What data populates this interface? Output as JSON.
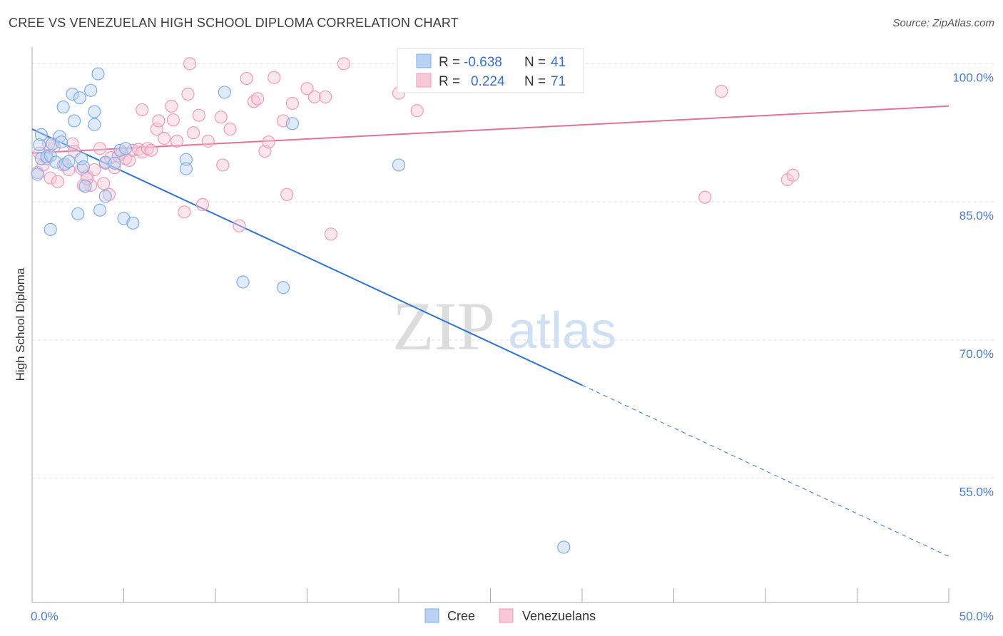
{
  "header": {
    "title": "CREE VS VENEZUELAN HIGH SCHOOL DIPLOMA CORRELATION CHART",
    "source": "Source: ZipAtlas.com"
  },
  "legend_box": {
    "rows": [
      {
        "r_label": "R =",
        "r_value": "-0.638",
        "n_label": "N =",
        "n_value": "41"
      },
      {
        "r_label": "R =",
        "r_value": "0.224",
        "n_label": "N =",
        "n_value": "71"
      }
    ]
  },
  "watermark": {
    "zip": "ZIP",
    "atlas": "atlas"
  },
  "bottom_legend": {
    "cree": "Cree",
    "venezuelans": "Venezuelans"
  },
  "colors": {
    "cree": "#7eaee8",
    "cree_fill": "#b9d2f3",
    "cree_line": "#2e74d3",
    "ven": "#f19ab6",
    "ven_fill": "#f8c8d7",
    "ven_line": "#e5709a",
    "grid": "#dddddd",
    "axis_text": "#4a7bd0"
  },
  "chart_data": {
    "type": "scatter",
    "title": "CREE VS VENEZUELAN HIGH SCHOOL DIPLOMA CORRELATION CHART",
    "xlabel": "",
    "ylabel": "High School Diploma",
    "xlim": [
      0,
      50
    ],
    "ylim": [
      41.5,
      101.5
    ],
    "x_tick_labels": [
      "0.0%",
      "50.0%"
    ],
    "y_ticks": [
      {
        "value": 100,
        "label": "100.0%"
      },
      {
        "value": 85,
        "label": "85.0%"
      },
      {
        "value": 70,
        "label": "70.0%"
      },
      {
        "value": 55,
        "label": "55.0%"
      }
    ],
    "series": [
      {
        "name": "Cree",
        "R": -0.638,
        "N": 41,
        "trend": {
          "x0": 0,
          "y0": 92.9,
          "x1": 30,
          "y1": 65.1,
          "dash_to_x": 50,
          "dash_to_y": 46.5
        },
        "points": [
          [
            0.3,
            88.0
          ],
          [
            0.4,
            91.2
          ],
          [
            0.5,
            89.7
          ],
          [
            0.8,
            89.9
          ],
          [
            1.0,
            90.0
          ],
          [
            1.1,
            91.3
          ],
          [
            1.3,
            89.3
          ],
          [
            1.5,
            92.1
          ],
          [
            1.6,
            91.5
          ],
          [
            1.7,
            95.3
          ],
          [
            1.8,
            89.1
          ],
          [
            2.0,
            89.4
          ],
          [
            2.2,
            96.7
          ],
          [
            2.3,
            93.8
          ],
          [
            2.5,
            83.7
          ],
          [
            2.6,
            96.3
          ],
          [
            2.7,
            89.7
          ],
          [
            2.8,
            88.8
          ],
          [
            2.9,
            86.7
          ],
          [
            3.2,
            97.1
          ],
          [
            3.4,
            94.8
          ],
          [
            3.4,
            93.4
          ],
          [
            3.6,
            98.9
          ],
          [
            3.7,
            84.1
          ],
          [
            4.0,
            85.6
          ],
          [
            4.0,
            89.3
          ],
          [
            4.5,
            89.2
          ],
          [
            4.8,
            90.6
          ],
          [
            5.0,
            83.2
          ],
          [
            5.1,
            90.8
          ],
          [
            5.5,
            82.7
          ],
          [
            8.4,
            89.6
          ],
          [
            8.4,
            88.6
          ],
          [
            10.5,
            96.9
          ],
          [
            11.5,
            76.3
          ],
          [
            13.7,
            75.7
          ],
          [
            14.2,
            93.5
          ],
          [
            20.0,
            89.0
          ],
          [
            1.0,
            82.0
          ],
          [
            29.0,
            47.5
          ],
          [
            0.5,
            92.3
          ]
        ]
      },
      {
        "name": "Venezuelans",
        "R": 0.224,
        "N": 71,
        "trend": {
          "x0": 0,
          "y0": 90.3,
          "x1": 50,
          "y1": 95.4
        },
        "points": [
          [
            0.3,
            88.2
          ],
          [
            0.4,
            90.3
          ],
          [
            0.6,
            89.0
          ],
          [
            0.8,
            89.7
          ],
          [
            1.0,
            87.6
          ],
          [
            1.2,
            91.0
          ],
          [
            1.4,
            87.2
          ],
          [
            1.7,
            89.0
          ],
          [
            2.0,
            88.5
          ],
          [
            2.2,
            91.3
          ],
          [
            2.3,
            90.5
          ],
          [
            2.7,
            88.6
          ],
          [
            3.0,
            87.8
          ],
          [
            3.2,
            86.8
          ],
          [
            3.4,
            88.5
          ],
          [
            3.7,
            90.8
          ],
          [
            3.9,
            87.0
          ],
          [
            4.0,
            89.2
          ],
          [
            4.2,
            85.8
          ],
          [
            4.3,
            89.8
          ],
          [
            4.5,
            88.7
          ],
          [
            4.7,
            90.0
          ],
          [
            4.9,
            90.3
          ],
          [
            5.1,
            89.7
          ],
          [
            5.3,
            89.5
          ],
          [
            5.5,
            90.6
          ],
          [
            5.8,
            90.7
          ],
          [
            6.0,
            90.4
          ],
          [
            6.3,
            90.8
          ],
          [
            6.5,
            90.6
          ],
          [
            6.8,
            92.9
          ],
          [
            6.9,
            93.8
          ],
          [
            7.2,
            91.9
          ],
          [
            7.6,
            95.4
          ],
          [
            7.7,
            93.9
          ],
          [
            7.9,
            91.6
          ],
          [
            8.3,
            83.9
          ],
          [
            8.5,
            96.7
          ],
          [
            8.6,
            100.0
          ],
          [
            8.8,
            92.5
          ],
          [
            9.1,
            94.4
          ],
          [
            9.3,
            84.7
          ],
          [
            9.6,
            91.6
          ],
          [
            10.3,
            94.2
          ],
          [
            10.4,
            89.0
          ],
          [
            10.8,
            92.9
          ],
          [
            11.3,
            82.4
          ],
          [
            11.7,
            98.4
          ],
          [
            12.1,
            95.9
          ],
          [
            12.3,
            96.2
          ],
          [
            12.7,
            90.5
          ],
          [
            12.9,
            91.5
          ],
          [
            13.2,
            98.5
          ],
          [
            13.7,
            93.8
          ],
          [
            13.9,
            85.8
          ],
          [
            14.2,
            95.7
          ],
          [
            15.0,
            97.3
          ],
          [
            15.4,
            96.4
          ],
          [
            16.0,
            96.4
          ],
          [
            16.3,
            81.5
          ],
          [
            17.0,
            100.0
          ],
          [
            20.0,
            96.8
          ],
          [
            21.0,
            94.9
          ],
          [
            36.7,
            85.5
          ],
          [
            37.6,
            97.0
          ],
          [
            41.2,
            87.4
          ],
          [
            41.5,
            87.9
          ],
          [
            2.8,
            86.8
          ],
          [
            3.0,
            87.5
          ],
          [
            6.0,
            95.0
          ],
          [
            0.9,
            91.3
          ]
        ]
      }
    ]
  }
}
